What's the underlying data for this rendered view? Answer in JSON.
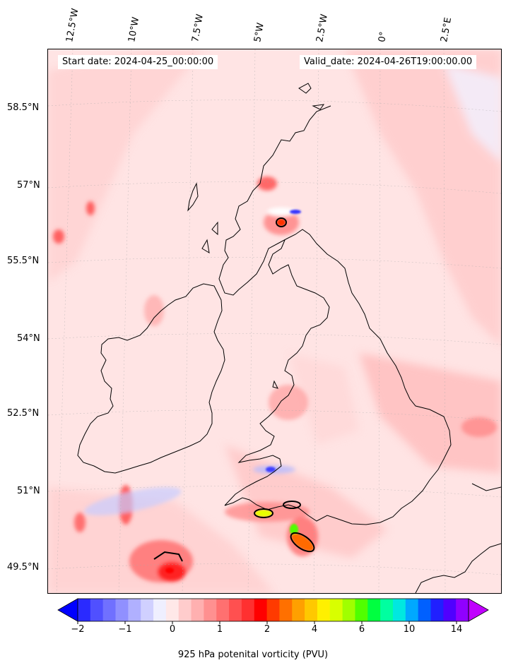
{
  "map": {
    "start_date": "Start date: 2024-04-25_00:00:00",
    "valid_date": "Valid_date: 2024-04-26T19:00:00.00",
    "lat_labels": [
      "58.5°N",
      "57°N",
      "55.5°N",
      "54°N",
      "52.5°N",
      "51°N",
      "49.5°N"
    ],
    "lon_labels": [
      "12.5°W",
      "10°W",
      "7.5°W",
      "5°W",
      "2.5°W",
      "0°",
      "2.5°E"
    ]
  },
  "colorbar": {
    "label": "925 hPa potenital vorticity (PVU)",
    "ticks": [
      "−2",
      "−1",
      "0",
      "1",
      "2",
      "4",
      "6",
      "10",
      "14"
    ],
    "colors": [
      "#0000ff",
      "#2a2aff",
      "#5050ff",
      "#7070ff",
      "#9090ff",
      "#b0b0ff",
      "#d0d0ff",
      "#efefff",
      "#ffe8e8",
      "#ffcccc",
      "#ffb0b0",
      "#ff9090",
      "#ff7070",
      "#ff5050",
      "#ff3030",
      "#ff0000",
      "#ff3a00",
      "#ff7000",
      "#ffa000",
      "#ffc800",
      "#fff000",
      "#d8ff00",
      "#a0ff00",
      "#50ff00",
      "#00ff40",
      "#00ffa0",
      "#00e8e0",
      "#00a8ff",
      "#0060ff",
      "#2020ff",
      "#5000ff",
      "#9000ff",
      "#c000ff"
    ]
  }
}
